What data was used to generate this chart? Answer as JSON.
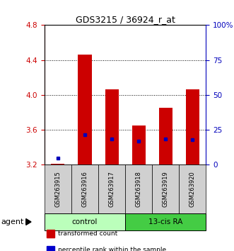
{
  "title": "GDS3215 / 36924_r_at",
  "samples": [
    "GSM263915",
    "GSM263916",
    "GSM263917",
    "GSM263918",
    "GSM263919",
    "GSM263920"
  ],
  "red_values": [
    3.21,
    4.46,
    4.06,
    3.65,
    3.85,
    4.06
  ],
  "blue_values": [
    3.27,
    3.545,
    3.49,
    3.465,
    3.49,
    3.48
  ],
  "y_min": 3.2,
  "y_max": 4.8,
  "y_ticks_red": [
    3.2,
    3.6,
    4.0,
    4.4,
    4.8
  ],
  "blue_tick_positions": [
    3.2,
    3.6,
    4.0,
    4.4,
    4.8
  ],
  "blue_tick_labels": [
    "0",
    "25",
    "50",
    "75",
    "100%"
  ],
  "groups": [
    {
      "label": "control",
      "color": "#bbffbb"
    },
    {
      "label": "13-cis RA",
      "color": "#44cc44"
    }
  ],
  "agent_label": "agent",
  "legend_items": [
    {
      "color": "#cc0000",
      "label": "transformed count"
    },
    {
      "color": "#0000cc",
      "label": "percentile rank within the sample"
    }
  ],
  "red_color": "#cc0000",
  "blue_color": "#0000bb",
  "bar_width": 0.5,
  "background_color": "#ffffff"
}
